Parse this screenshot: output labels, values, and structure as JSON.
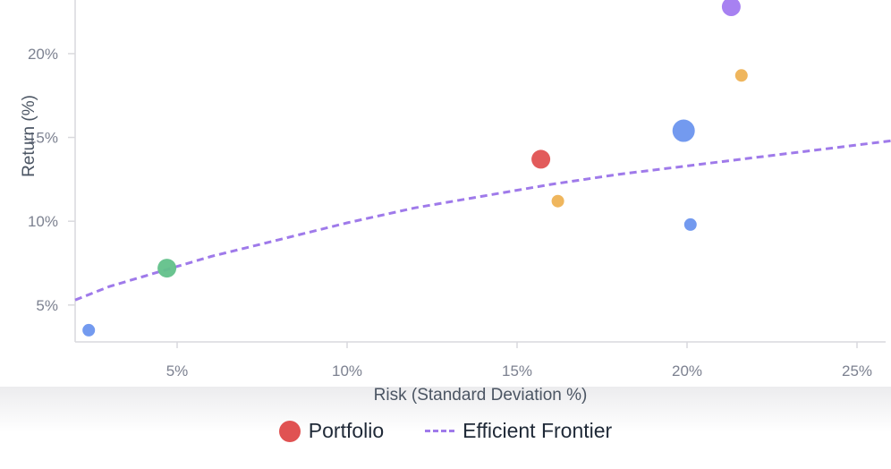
{
  "colors": {
    "portfolio_red": "#e05252",
    "frontier_purple": "#9f7aea",
    "point_blue": "#6b95ee",
    "point_orange": "#eeb254",
    "point_green": "#62c18a",
    "point_violet": "#a27af0",
    "axis": "#d9d9dd",
    "tick_text": "#7c8190"
  },
  "chart_data": {
    "type": "scatter",
    "title": "",
    "xlabel": "Risk (Standard Deviation %)",
    "ylabel": "Return (%)",
    "xlim": [
      2,
      26
    ],
    "ylim": [
      2.8,
      23.2
    ],
    "x_ticks": [
      5,
      10,
      15,
      20,
      25
    ],
    "x_tick_labels": [
      "5%",
      "10%",
      "15%",
      "20%",
      "25%"
    ],
    "y_ticks": [
      5,
      10,
      15,
      20
    ],
    "y_tick_labels": [
      "5%",
      "10%",
      "15%",
      "20%"
    ],
    "grid": false,
    "legend_placement": "bottom-center",
    "series": [
      {
        "name": "Portfolio",
        "kind": "scatter",
        "points": [
          {
            "x": 2.4,
            "y": 3.5,
            "size": "small",
            "color": "#6b95ee"
          },
          {
            "x": 4.7,
            "y": 7.2,
            "size": "medium",
            "color": "#62c18a"
          },
          {
            "x": 15.7,
            "y": 13.7,
            "size": "medium",
            "color": "#e05252"
          },
          {
            "x": 16.2,
            "y": 11.2,
            "size": "small",
            "color": "#eeb254"
          },
          {
            "x": 19.9,
            "y": 15.4,
            "size": "large",
            "color": "#6b95ee"
          },
          {
            "x": 20.1,
            "y": 9.8,
            "size": "small",
            "color": "#6b95ee"
          },
          {
            "x": 21.3,
            "y": 22.8,
            "size": "medium",
            "color": "#a27af0"
          },
          {
            "x": 21.6,
            "y": 18.7,
            "size": "small",
            "color": "#eeb254"
          }
        ]
      },
      {
        "name": "Efficient Frontier",
        "kind": "line",
        "style": "dashed",
        "color": "#9f7aea",
        "points": [
          {
            "x": 2.0,
            "y": 5.3
          },
          {
            "x": 3.0,
            "y": 6.1
          },
          {
            "x": 4.0,
            "y": 6.7
          },
          {
            "x": 5.0,
            "y": 7.3
          },
          {
            "x": 6.0,
            "y": 7.9
          },
          {
            "x": 8.0,
            "y": 8.9
          },
          {
            "x": 10.0,
            "y": 9.9
          },
          {
            "x": 12.0,
            "y": 10.8
          },
          {
            "x": 14.0,
            "y": 11.5
          },
          {
            "x": 16.0,
            "y": 12.2
          },
          {
            "x": 18.0,
            "y": 12.8
          },
          {
            "x": 20.0,
            "y": 13.3
          },
          {
            "x": 22.0,
            "y": 13.8
          },
          {
            "x": 24.0,
            "y": 14.3
          },
          {
            "x": 26.0,
            "y": 14.8
          }
        ]
      }
    ]
  },
  "legend": {
    "portfolio_label": "Portfolio",
    "frontier_label": "Efficient Frontier"
  }
}
